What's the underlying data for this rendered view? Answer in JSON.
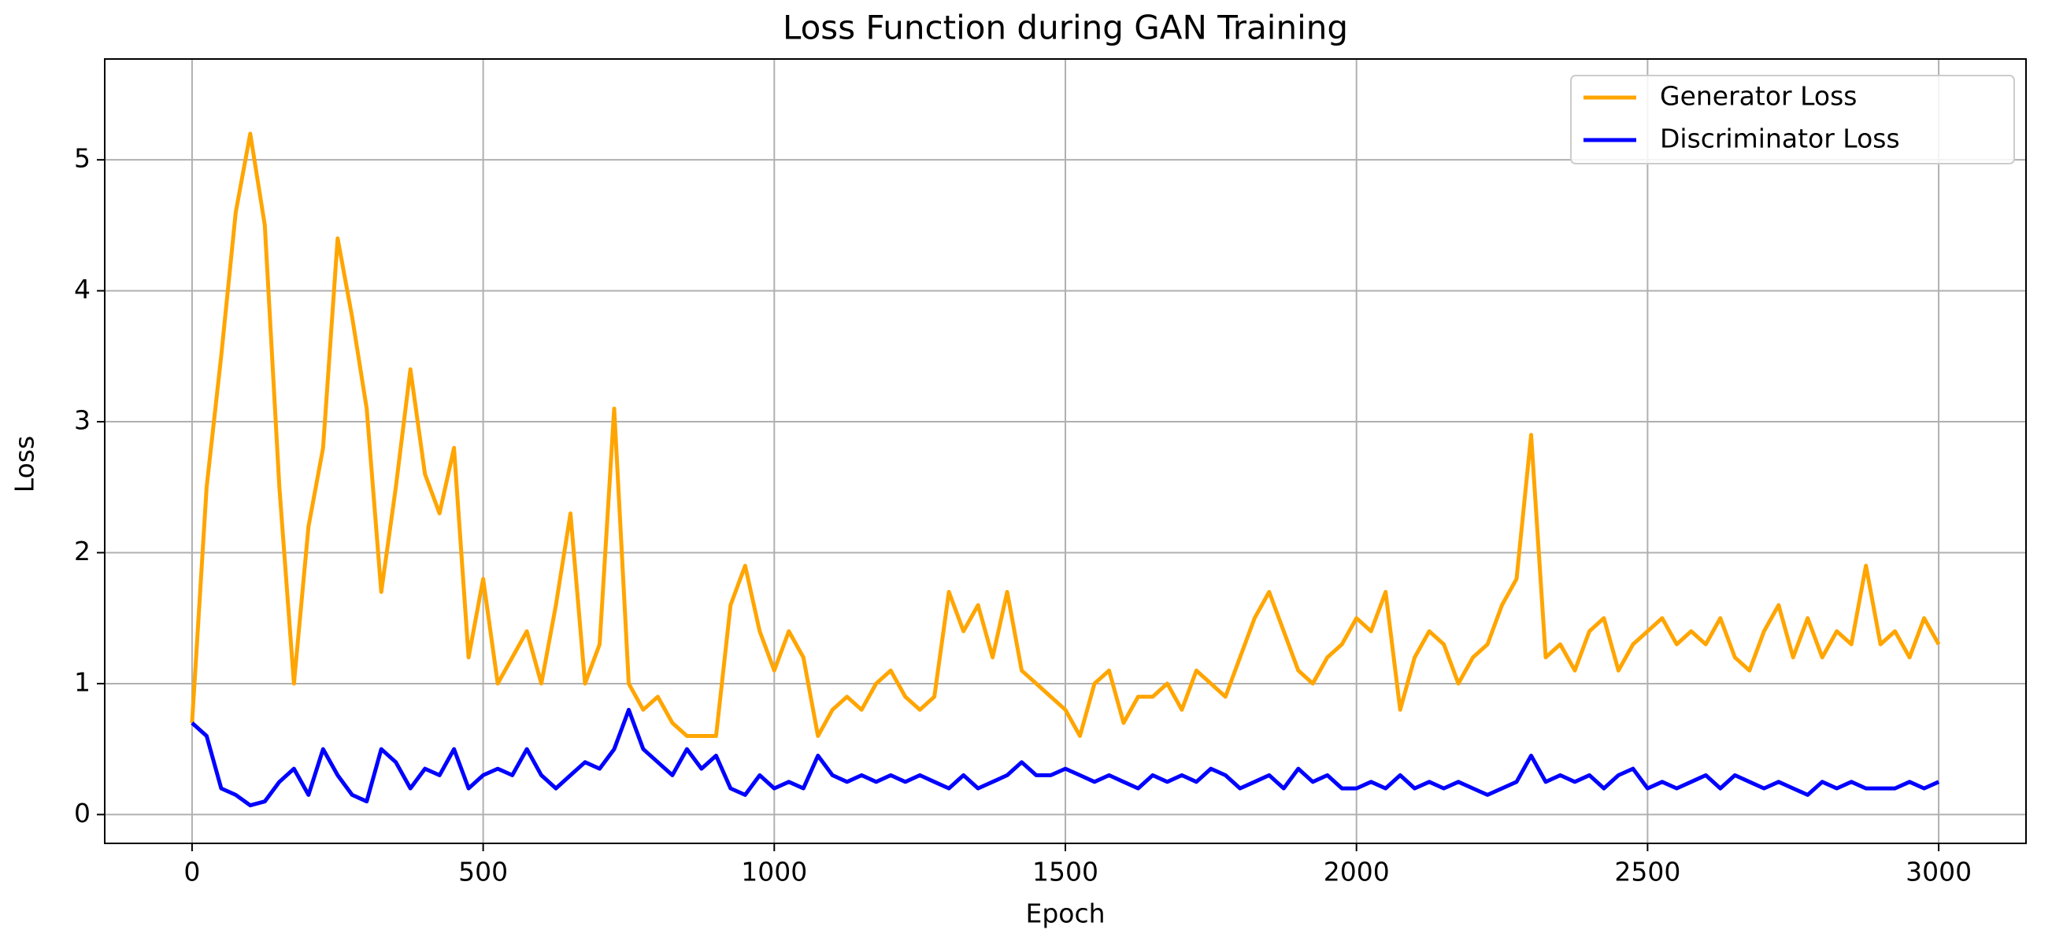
{
  "chart_data": {
    "type": "line",
    "title": "Loss Function during GAN Training",
    "x_label": "Epoch",
    "y_label": "Loss",
    "x": [
      0,
      25,
      50,
      75,
      100,
      125,
      150,
      175,
      200,
      225,
      250,
      275,
      300,
      325,
      350,
      375,
      400,
      425,
      450,
      475,
      500,
      525,
      550,
      575,
      600,
      625,
      650,
      675,
      700,
      725,
      750,
      775,
      800,
      825,
      850,
      875,
      900,
      925,
      950,
      975,
      1000,
      1025,
      1050,
      1075,
      1100,
      1125,
      1150,
      1175,
      1200,
      1225,
      1250,
      1275,
      1300,
      1325,
      1350,
      1375,
      1400,
      1425,
      1450,
      1475,
      1500,
      1525,
      1550,
      1575,
      1600,
      1625,
      1650,
      1675,
      1700,
      1725,
      1750,
      1775,
      1800,
      1825,
      1850,
      1875,
      1900,
      1925,
      1950,
      1975,
      2000,
      2025,
      2050,
      2075,
      2100,
      2125,
      2150,
      2175,
      2200,
      2225,
      2250,
      2275,
      2300,
      2325,
      2350,
      2375,
      2400,
      2425,
      2450,
      2475,
      2500,
      2525,
      2550,
      2575,
      2600,
      2625,
      2650,
      2675,
      2700,
      2725,
      2750,
      2775,
      2800,
      2825,
      2850,
      2875,
      2900,
      2925,
      2950,
      2975,
      3000
    ],
    "series": [
      {
        "name": "Generator Loss",
        "color": "#ffa500",
        "values": [
          0.7,
          2.5,
          3.5,
          4.6,
          5.2,
          4.5,
          2.5,
          1.0,
          2.2,
          2.8,
          4.4,
          3.8,
          3.1,
          1.7,
          2.5,
          3.4,
          2.6,
          2.3,
          2.8,
          1.2,
          1.8,
          1.0,
          1.2,
          1.4,
          1.0,
          1.6,
          2.3,
          1.0,
          1.3,
          3.1,
          1.0,
          0.8,
          0.9,
          0.7,
          0.6,
          0.6,
          0.6,
          1.6,
          1.9,
          1.4,
          1.1,
          1.4,
          1.2,
          0.6,
          0.8,
          0.9,
          0.8,
          1.0,
          1.1,
          0.9,
          0.8,
          0.9,
          1.7,
          1.4,
          1.6,
          1.2,
          1.7,
          1.1,
          1.0,
          0.9,
          0.8,
          0.6,
          1.0,
          1.1,
          0.7,
          0.9,
          0.9,
          1.0,
          0.8,
          1.1,
          1.0,
          0.9,
          1.2,
          1.5,
          1.7,
          1.4,
          1.1,
          1.0,
          1.2,
          1.3,
          1.5,
          1.4,
          1.7,
          0.8,
          1.2,
          1.4,
          1.3,
          1.0,
          1.2,
          1.3,
          1.6,
          1.8,
          2.9,
          1.2,
          1.3,
          1.1,
          1.4,
          1.5,
          1.1,
          1.3,
          1.4,
          1.5,
          1.3,
          1.4,
          1.3,
          1.5,
          1.2,
          1.1,
          1.4,
          1.6,
          1.2,
          1.5,
          1.2,
          1.4,
          1.3,
          1.9,
          1.3,
          1.4,
          1.2,
          1.5,
          1.3
        ]
      },
      {
        "name": "Discriminator Loss",
        "color": "#0000ff",
        "values": [
          0.7,
          0.6,
          0.2,
          0.15,
          0.07,
          0.1,
          0.25,
          0.35,
          0.15,
          0.5,
          0.3,
          0.15,
          0.1,
          0.5,
          0.4,
          0.2,
          0.35,
          0.3,
          0.5,
          0.2,
          0.3,
          0.35,
          0.3,
          0.5,
          0.3,
          0.2,
          0.3,
          0.4,
          0.35,
          0.5,
          0.8,
          0.5,
          0.4,
          0.3,
          0.5,
          0.35,
          0.45,
          0.2,
          0.15,
          0.3,
          0.2,
          0.25,
          0.2,
          0.45,
          0.3,
          0.25,
          0.3,
          0.25,
          0.3,
          0.25,
          0.3,
          0.25,
          0.2,
          0.3,
          0.2,
          0.25,
          0.3,
          0.4,
          0.3,
          0.3,
          0.35,
          0.3,
          0.25,
          0.3,
          0.25,
          0.2,
          0.3,
          0.25,
          0.3,
          0.25,
          0.35,
          0.3,
          0.2,
          0.25,
          0.3,
          0.2,
          0.35,
          0.25,
          0.3,
          0.2,
          0.2,
          0.25,
          0.2,
          0.3,
          0.2,
          0.25,
          0.2,
          0.25,
          0.2,
          0.15,
          0.2,
          0.25,
          0.45,
          0.25,
          0.3,
          0.25,
          0.3,
          0.2,
          0.3,
          0.35,
          0.2,
          0.25,
          0.2,
          0.25,
          0.3,
          0.2,
          0.3,
          0.25,
          0.2,
          0.25,
          0.2,
          0.15,
          0.25,
          0.2,
          0.25,
          0.2,
          0.2,
          0.2,
          0.25,
          0.2,
          0.25
        ]
      }
    ],
    "xlim": [
      -150,
      3150
    ],
    "ylim": [
      -0.22,
      5.77
    ],
    "xticks": [
      0,
      500,
      1000,
      1500,
      2000,
      2500,
      3000
    ],
    "yticks": [
      0,
      1,
      2,
      3,
      4,
      5
    ],
    "grid": true,
    "legend": "upper right"
  }
}
